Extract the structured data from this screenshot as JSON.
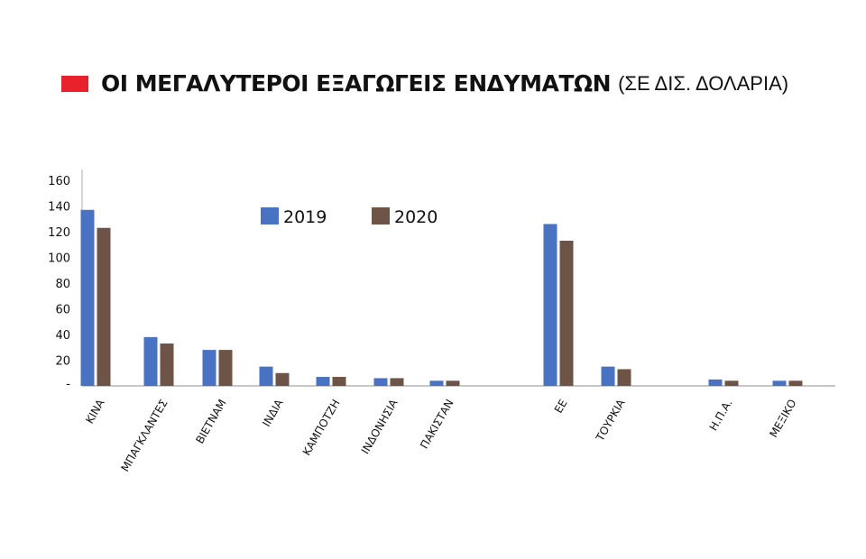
{
  "title": {
    "main": "ΟΙ ΜΕΓΑΛΥΤΕΡΟΙ ΕΞΑΓΩΓΕΙΣ ΕΝΔΥΜΑΤΩΝ",
    "sub": "(ΣΕ ΔΙΣ. ΔΟΛΑΡΙΑ)",
    "swatch_color": "#e8212a"
  },
  "chart_data": {
    "type": "bar",
    "title": "ΟΙ ΜΕΓΑΛΥΤΕΡΟΙ ΕΞΑΓΩΓΕΙΣ ΕΝΔΥΜΑΤΩΝ",
    "subtitle": "(ΣΕ ΔΙΣ. ΔΟΛΑΡΙΑ)",
    "xlabel": "",
    "ylabel": "",
    "ylim": [
      0,
      160
    ],
    "yticks": [
      {
        "value": 160,
        "label": "160"
      },
      {
        "value": 140,
        "label": "140"
      },
      {
        "value": 120,
        "label": "120"
      },
      {
        "value": 100,
        "label": "100"
      },
      {
        "value": 80,
        "label": "80"
      },
      {
        "value": 60,
        "label": "60"
      },
      {
        "value": 40,
        "label": "40"
      },
      {
        "value": 20,
        "label": "20"
      },
      {
        "value": 0,
        "label": "-"
      }
    ],
    "grid": false,
    "legend_position": "top-left",
    "categories": [
      "ΚΙΝΑ",
      "ΜΠΑΓΚΛΑΝΤΕΣ",
      "ΒΙΕΤΝΑΜ",
      "ΙΝΔΙΑ",
      "ΚΑΜΠΟΤΖΗ",
      "ΙΝΔΟΝΗΣΙΑ",
      "ΠΑΚΙΣΤΑΝ",
      "ΕΕ",
      "ΤΟΥΡΚΙΑ",
      "Η.Π.Α.",
      "ΜΕΞΙΚΟ"
    ],
    "series": [
      {
        "name": "2019",
        "color": "#4a72c2",
        "values": [
          137,
          38,
          28,
          15,
          7,
          6,
          4,
          126,
          15,
          5,
          4
        ]
      },
      {
        "name": "2020",
        "color": "#6d5446",
        "values": [
          123,
          33,
          28,
          10,
          7,
          6,
          4,
          113,
          13,
          4,
          4
        ]
      }
    ]
  }
}
